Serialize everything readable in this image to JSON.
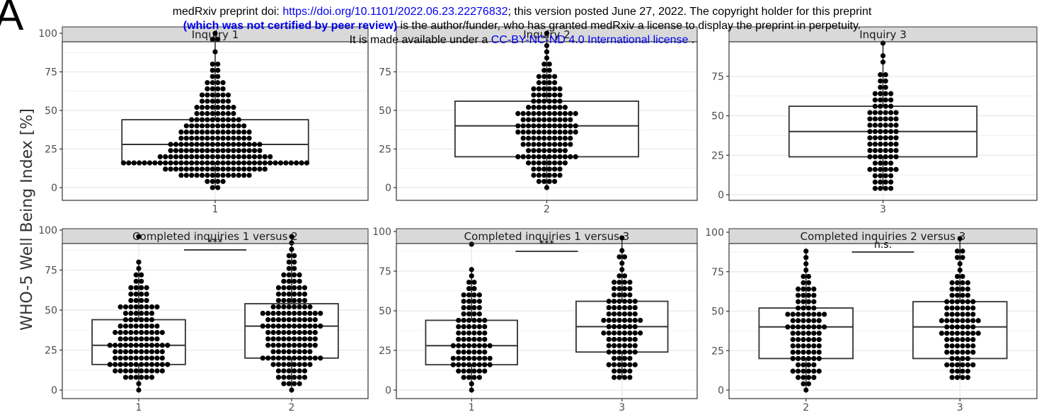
{
  "preprint": {
    "line1_prefix": "medRxiv preprint doi: ",
    "doi_link": "https://doi.org/10.1101/2022.06.23.22276832",
    "line1_suffix": "; this version posted June 27, 2022. The copyright holder for this preprint",
    "line2_bold": "(which was not certified by peer review)",
    "line2_rest": " is the author/funder, who has granted medRxiv a license to display the preprint in perpetuity.",
    "line3_prefix": "It is made available under a ",
    "license_link": "CC-BY-NC-ND 4.0 International license",
    "line3_suffix": " ."
  },
  "figure_letter": "A",
  "ylabel": "WHO-5 Well Being Index [%]",
  "colors": {
    "strip": "#d9d9d9",
    "grid": "#ebebeb",
    "panel_border": "#333333",
    "point": "#000000",
    "box": "#333333"
  },
  "chart_data": [
    {
      "type": "scatter",
      "subtype": "box-with-dotplot",
      "title": "Inquiry 1",
      "categories": [
        "1"
      ],
      "ylim": [
        0,
        100
      ],
      "yticks": [
        0,
        25,
        50,
        75,
        100
      ],
      "grid": true,
      "boxes": [
        {
          "x": "1",
          "q1": 16,
          "median": 28,
          "q3": 44,
          "lower": 0,
          "upper": 100
        }
      ],
      "dot_stacks": [
        {
          "x": "1",
          "levels": [
            [
              0,
              2
            ],
            [
              4,
              4
            ],
            [
              8,
              14
            ],
            [
              12,
              20
            ],
            [
              16,
              36
            ],
            [
              20,
              22
            ],
            [
              24,
              18
            ],
            [
              28,
              18
            ],
            [
              32,
              14
            ],
            [
              36,
              14
            ],
            [
              40,
              12
            ],
            [
              44,
              10
            ],
            [
              48,
              8
            ],
            [
              52,
              8
            ],
            [
              56,
              6
            ],
            [
              60,
              6
            ],
            [
              64,
              4
            ],
            [
              68,
              4
            ],
            [
              72,
              2
            ],
            [
              76,
              2
            ],
            [
              80,
              2
            ],
            [
              88,
              1
            ],
            [
              96,
              2
            ],
            [
              100,
              1
            ]
          ]
        }
      ],
      "annotation": ""
    },
    {
      "type": "scatter",
      "subtype": "box-with-dotplot",
      "title": "Inquiry 2",
      "categories": [
        "2"
      ],
      "ylim": [
        0,
        100
      ],
      "yticks": [
        0,
        25,
        50,
        75
      ],
      "grid": true,
      "boxes": [
        {
          "x": "2",
          "q1": 20,
          "median": 40,
          "q3": 56,
          "lower": 0,
          "upper": 100
        }
      ],
      "dot_stacks": [
        {
          "x": "2",
          "levels": [
            [
              0,
              1
            ],
            [
              4,
              4
            ],
            [
              8,
              6
            ],
            [
              12,
              6
            ],
            [
              16,
              8
            ],
            [
              20,
              12
            ],
            [
              24,
              8
            ],
            [
              28,
              10
            ],
            [
              32,
              10
            ],
            [
              36,
              12
            ],
            [
              40,
              12
            ],
            [
              44,
              10
            ],
            [
              48,
              12
            ],
            [
              52,
              8
            ],
            [
              56,
              6
            ],
            [
              60,
              6
            ],
            [
              64,
              6
            ],
            [
              68,
              4
            ],
            [
              72,
              4
            ],
            [
              76,
              2
            ],
            [
              80,
              2
            ],
            [
              84,
              1
            ],
            [
              88,
              1
            ],
            [
              92,
              1
            ],
            [
              100,
              1
            ]
          ]
        }
      ],
      "annotation": ""
    },
    {
      "type": "scatter",
      "subtype": "box-with-dotplot",
      "title": "Inquiry 3",
      "categories": [
        "3"
      ],
      "ylim": [
        0,
        100
      ],
      "yticks": [
        0,
        25,
        50,
        75
      ],
      "grid": true,
      "boxes": [
        {
          "x": "3",
          "q1": 24,
          "median": 40,
          "q3": 56,
          "lower": 4,
          "upper": 96
        }
      ],
      "dot_stacks": [
        {
          "x": "3",
          "levels": [
            [
              4,
              4
            ],
            [
              8,
              4
            ],
            [
              12,
              4
            ],
            [
              16,
              6
            ],
            [
              20,
              4
            ],
            [
              24,
              6
            ],
            [
              28,
              6
            ],
            [
              32,
              6
            ],
            [
              36,
              6
            ],
            [
              40,
              6
            ],
            [
              44,
              6
            ],
            [
              48,
              6
            ],
            [
              52,
              6
            ],
            [
              56,
              4
            ],
            [
              60,
              4
            ],
            [
              64,
              4
            ],
            [
              68,
              2
            ],
            [
              72,
              2
            ],
            [
              76,
              2
            ],
            [
              84,
              1
            ],
            [
              88,
              1
            ],
            [
              96,
              1
            ]
          ]
        }
      ],
      "annotation": ""
    },
    {
      "type": "scatter",
      "subtype": "box-with-dotplot",
      "title": "Completed inquiries 1 versus 2",
      "categories": [
        "1",
        "2"
      ],
      "ylim": [
        0,
        100
      ],
      "yticks": [
        0,
        25,
        50,
        75,
        100
      ],
      "grid": true,
      "boxes": [
        {
          "x": "1",
          "q1": 16,
          "median": 28,
          "q3": 44,
          "lower": 0,
          "upper": 80
        },
        {
          "x": "2",
          "q1": 20,
          "median": 40,
          "q3": 54,
          "lower": 0,
          "upper": 96
        }
      ],
      "dot_stacks": [
        {
          "x": "1",
          "levels": [
            [
              0,
              1
            ],
            [
              4,
              1
            ],
            [
              8,
              6
            ],
            [
              12,
              10
            ],
            [
              16,
              12
            ],
            [
              20,
              10
            ],
            [
              24,
              10
            ],
            [
              28,
              12
            ],
            [
              32,
              8
            ],
            [
              36,
              10
            ],
            [
              40,
              8
            ],
            [
              44,
              6
            ],
            [
              48,
              6
            ],
            [
              52,
              8
            ],
            [
              56,
              4
            ],
            [
              60,
              4
            ],
            [
              64,
              4
            ],
            [
              68,
              2
            ],
            [
              72,
              2
            ],
            [
              76,
              1
            ],
            [
              80,
              1
            ],
            [
              96,
              1
            ]
          ]
        },
        {
          "x": "2",
          "levels": [
            [
              0,
              1
            ],
            [
              4,
              4
            ],
            [
              8,
              6
            ],
            [
              12,
              6
            ],
            [
              16,
              8
            ],
            [
              20,
              12
            ],
            [
              24,
              8
            ],
            [
              28,
              10
            ],
            [
              32,
              10
            ],
            [
              36,
              10
            ],
            [
              40,
              12
            ],
            [
              44,
              10
            ],
            [
              48,
              12
            ],
            [
              52,
              8
            ],
            [
              56,
              6
            ],
            [
              60,
              6
            ],
            [
              64,
              6
            ],
            [
              68,
              4
            ],
            [
              72,
              4
            ],
            [
              76,
              2
            ],
            [
              80,
              2
            ],
            [
              84,
              2
            ],
            [
              88,
              1
            ],
            [
              92,
              1
            ],
            [
              96,
              1
            ]
          ]
        }
      ],
      "annotation": "***"
    },
    {
      "type": "scatter",
      "subtype": "box-with-dotplot",
      "title": "Completed inquiries 1 versus 3",
      "categories": [
        "1",
        "3"
      ],
      "ylim": [
        0,
        100
      ],
      "yticks": [
        0,
        25,
        50,
        75,
        100
      ],
      "grid": true,
      "boxes": [
        {
          "x": "1",
          "q1": 16,
          "median": 28,
          "q3": 44,
          "lower": 0,
          "upper": 76
        },
        {
          "x": "3",
          "q1": 24,
          "median": 40,
          "q3": 56,
          "lower": 8,
          "upper": 96
        }
      ],
      "dot_stacks": [
        {
          "x": "1",
          "levels": [
            [
              0,
              1
            ],
            [
              4,
              1
            ],
            [
              8,
              4
            ],
            [
              12,
              6
            ],
            [
              16,
              8
            ],
            [
              20,
              8
            ],
            [
              24,
              6
            ],
            [
              28,
              8
            ],
            [
              32,
              6
            ],
            [
              36,
              6
            ],
            [
              40,
              6
            ],
            [
              44,
              6
            ],
            [
              48,
              4
            ],
            [
              52,
              4
            ],
            [
              56,
              4
            ],
            [
              60,
              4
            ],
            [
              64,
              2
            ],
            [
              68,
              2
            ],
            [
              72,
              1
            ],
            [
              76,
              1
            ],
            [
              92,
              1
            ]
          ]
        },
        {
          "x": "3",
          "levels": [
            [
              8,
              4
            ],
            [
              12,
              4
            ],
            [
              16,
              6
            ],
            [
              20,
              4
            ],
            [
              24,
              6
            ],
            [
              28,
              6
            ],
            [
              32,
              6
            ],
            [
              36,
              8
            ],
            [
              40,
              6
            ],
            [
              44,
              8
            ],
            [
              48,
              6
            ],
            [
              52,
              6
            ],
            [
              56,
              6
            ],
            [
              60,
              4
            ],
            [
              64,
              4
            ],
            [
              68,
              4
            ],
            [
              72,
              2
            ],
            [
              76,
              1
            ],
            [
              80,
              1
            ],
            [
              84,
              2
            ],
            [
              88,
              1
            ],
            [
              96,
              1
            ]
          ]
        }
      ],
      "annotation": "***"
    },
    {
      "type": "scatter",
      "subtype": "box-with-dotplot",
      "title": "Completed inquiries 2 versus 3",
      "categories": [
        "2",
        "3"
      ],
      "ylim": [
        0,
        100
      ],
      "yticks": [
        0,
        25,
        50,
        75,
        100
      ],
      "grid": true,
      "boxes": [
        {
          "x": "2",
          "q1": 20,
          "median": 40,
          "q3": 52,
          "lower": 0,
          "upper": 88
        },
        {
          "x": "3",
          "q1": 20,
          "median": 40,
          "q3": 56,
          "lower": 8,
          "upper": 96
        }
      ],
      "dot_stacks": [
        {
          "x": "2",
          "levels": [
            [
              0,
              1
            ],
            [
              4,
              2
            ],
            [
              8,
              4
            ],
            [
              12,
              6
            ],
            [
              16,
              4
            ],
            [
              20,
              6
            ],
            [
              24,
              6
            ],
            [
              28,
              6
            ],
            [
              32,
              6
            ],
            [
              36,
              6
            ],
            [
              40,
              8
            ],
            [
              44,
              6
            ],
            [
              48,
              8
            ],
            [
              52,
              4
            ],
            [
              56,
              4
            ],
            [
              60,
              4
            ],
            [
              64,
              4
            ],
            [
              68,
              2
            ],
            [
              72,
              2
            ],
            [
              76,
              1
            ],
            [
              80,
              1
            ],
            [
              84,
              1
            ],
            [
              88,
              1
            ]
          ]
        },
        {
          "x": "3",
          "levels": [
            [
              8,
              4
            ],
            [
              12,
              4
            ],
            [
              16,
              6
            ],
            [
              20,
              4
            ],
            [
              24,
              6
            ],
            [
              28,
              6
            ],
            [
              32,
              6
            ],
            [
              36,
              8
            ],
            [
              40,
              6
            ],
            [
              44,
              8
            ],
            [
              48,
              6
            ],
            [
              52,
              6
            ],
            [
              56,
              6
            ],
            [
              60,
              4
            ],
            [
              64,
              4
            ],
            [
              68,
              4
            ],
            [
              72,
              2
            ],
            [
              76,
              1
            ],
            [
              80,
              1
            ],
            [
              84,
              2
            ],
            [
              88,
              2
            ],
            [
              96,
              1
            ]
          ]
        }
      ],
      "annotation": "n.s."
    }
  ]
}
